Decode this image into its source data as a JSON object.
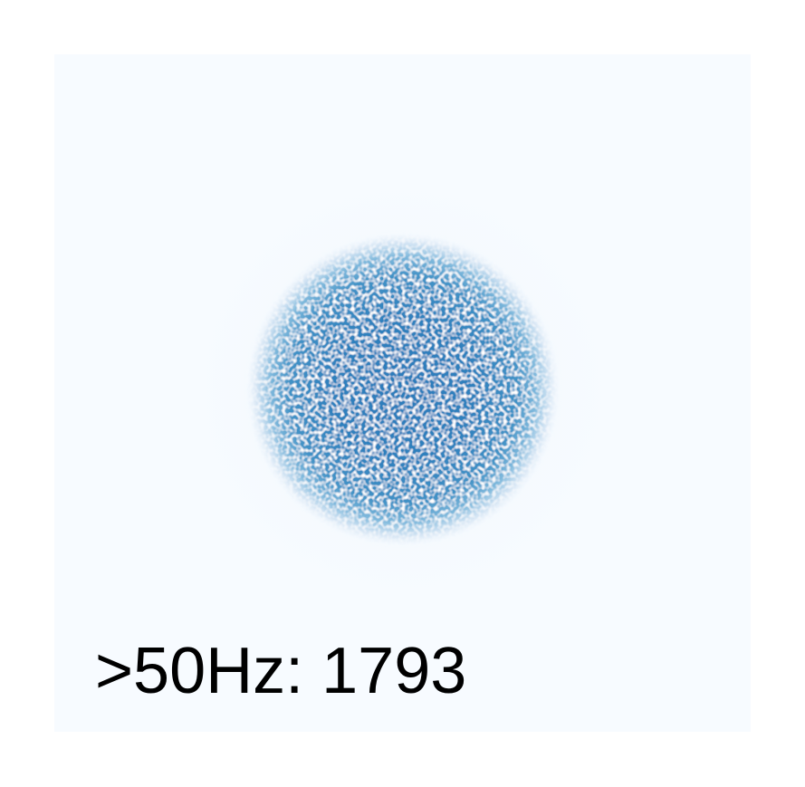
{
  "annotation": ">50Hz: 1793"
}
